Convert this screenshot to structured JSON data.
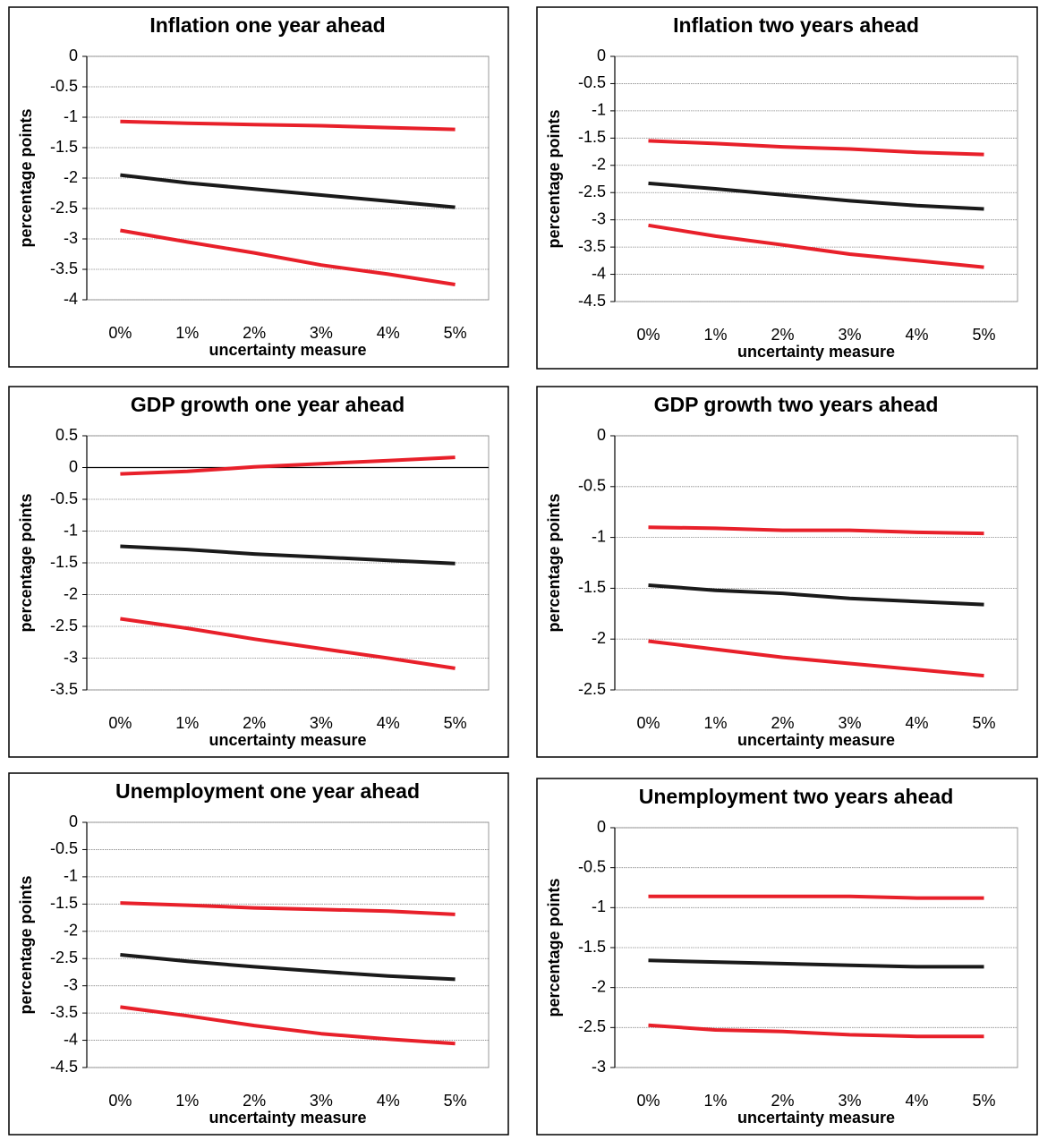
{
  "chart_data": [
    {
      "type": "line",
      "title": "Inflation one year ahead",
      "y_label": "percentage points",
      "x_label": "uncertainty measure",
      "categories": [
        "0%",
        "1%",
        "2%",
        "3%",
        "4%",
        "5%"
      ],
      "ylim": [
        -4,
        0
      ],
      "yticks": [
        0,
        -0.5,
        -1,
        -1.5,
        -2,
        -2.5,
        -3,
        -3.5,
        -4
      ],
      "grid": true,
      "series": [
        {
          "color": "#e8202a",
          "values": [
            -1.07,
            -1.1,
            -1.12,
            -1.14,
            -1.17,
            -1.2
          ]
        },
        {
          "color": "#1a1a1a",
          "values": [
            -1.95,
            -2.08,
            -2.18,
            -2.28,
            -2.38,
            -2.48
          ]
        },
        {
          "color": "#e8202a",
          "values": [
            -2.86,
            -3.05,
            -3.23,
            -3.43,
            -3.58,
            -3.75
          ]
        }
      ]
    },
    {
      "type": "line",
      "title": "Inflation two years ahead",
      "y_label": "percentage points",
      "x_label": "uncertainty measure",
      "categories": [
        "0%",
        "1%",
        "2%",
        "3%",
        "4%",
        "5%"
      ],
      "ylim": [
        -4.5,
        0
      ],
      "yticks": [
        0,
        -0.5,
        -1,
        -1.5,
        -2,
        -2.5,
        -3,
        -3.5,
        -4,
        -4.5
      ],
      "grid": true,
      "series": [
        {
          "color": "#e8202a",
          "values": [
            -1.55,
            -1.6,
            -1.66,
            -1.7,
            -1.76,
            -1.8
          ]
        },
        {
          "color": "#1a1a1a",
          "values": [
            -2.33,
            -2.43,
            -2.54,
            -2.65,
            -2.74,
            -2.8
          ]
        },
        {
          "color": "#e8202a",
          "values": [
            -3.1,
            -3.3,
            -3.46,
            -3.63,
            -3.75,
            -3.87
          ]
        }
      ]
    },
    {
      "type": "line",
      "title": "GDP growth one year ahead",
      "y_label": "percentage points",
      "x_label": "uncertainty measure",
      "categories": [
        "0%",
        "1%",
        "2%",
        "3%",
        "4%",
        "5%"
      ],
      "ylim": [
        -3.5,
        0.5
      ],
      "yticks": [
        0.5,
        0,
        -0.5,
        -1,
        -1.5,
        -2,
        -2.5,
        -3,
        -3.5
      ],
      "grid": true,
      "series": [
        {
          "color": "#e8202a",
          "values": [
            -0.1,
            -0.06,
            0.01,
            0.06,
            0.11,
            0.16
          ]
        },
        {
          "color": "#1a1a1a",
          "values": [
            -1.24,
            -1.29,
            -1.36,
            -1.41,
            -1.46,
            -1.51
          ]
        },
        {
          "color": "#e8202a",
          "values": [
            -2.38,
            -2.53,
            -2.7,
            -2.85,
            -3.0,
            -3.16
          ]
        }
      ]
    },
    {
      "type": "line",
      "title": "GDP growth two years ahead",
      "y_label": "percentage points",
      "x_label": "uncertainty measure",
      "categories": [
        "0%",
        "1%",
        "2%",
        "3%",
        "4%",
        "5%"
      ],
      "ylim": [
        -2.5,
        0
      ],
      "yticks": [
        0,
        -0.5,
        -1,
        -1.5,
        -2,
        -2.5
      ],
      "grid": true,
      "series": [
        {
          "color": "#e8202a",
          "values": [
            -0.9,
            -0.91,
            -0.93,
            -0.93,
            -0.95,
            -0.96
          ]
        },
        {
          "color": "#1a1a1a",
          "values": [
            -1.47,
            -1.52,
            -1.55,
            -1.6,
            -1.63,
            -1.66
          ]
        },
        {
          "color": "#e8202a",
          "values": [
            -2.02,
            -2.1,
            -2.18,
            -2.24,
            -2.3,
            -2.36
          ]
        }
      ]
    },
    {
      "type": "line",
      "title": "Unemployment one year ahead",
      "y_label": "percentage points",
      "x_label": "uncertainty measure",
      "categories": [
        "0%",
        "1%",
        "2%",
        "3%",
        "4%",
        "5%"
      ],
      "ylim": [
        -4.5,
        0
      ],
      "yticks": [
        0,
        -0.5,
        -1,
        -1.5,
        -2,
        -2.5,
        -3,
        -3.5,
        -4,
        -4.5
      ],
      "grid": true,
      "series": [
        {
          "color": "#e8202a",
          "values": [
            -1.48,
            -1.52,
            -1.57,
            -1.6,
            -1.63,
            -1.69
          ]
        },
        {
          "color": "#1a1a1a",
          "values": [
            -2.43,
            -2.55,
            -2.65,
            -2.74,
            -2.82,
            -2.88
          ]
        },
        {
          "color": "#e8202a",
          "values": [
            -3.39,
            -3.55,
            -3.73,
            -3.88,
            -3.98,
            -4.06
          ]
        }
      ]
    },
    {
      "type": "line",
      "title": "Unemployment two years ahead",
      "y_label": "percentage points",
      "x_label": "uncertainty measure",
      "categories": [
        "0%",
        "1%",
        "2%",
        "3%",
        "4%",
        "5%"
      ],
      "ylim": [
        -3,
        0
      ],
      "yticks": [
        0,
        -0.5,
        -1,
        -1.5,
        -2,
        -2.5,
        -3
      ],
      "grid": true,
      "series": [
        {
          "color": "#e8202a",
          "values": [
            -0.86,
            -0.86,
            -0.86,
            -0.86,
            -0.88,
            -0.88
          ]
        },
        {
          "color": "#1a1a1a",
          "values": [
            -1.66,
            -1.68,
            -1.7,
            -1.72,
            -1.74,
            -1.74
          ]
        },
        {
          "color": "#e8202a",
          "values": [
            -2.47,
            -2.53,
            -2.55,
            -2.59,
            -2.61,
            -2.61
          ]
        }
      ]
    }
  ]
}
